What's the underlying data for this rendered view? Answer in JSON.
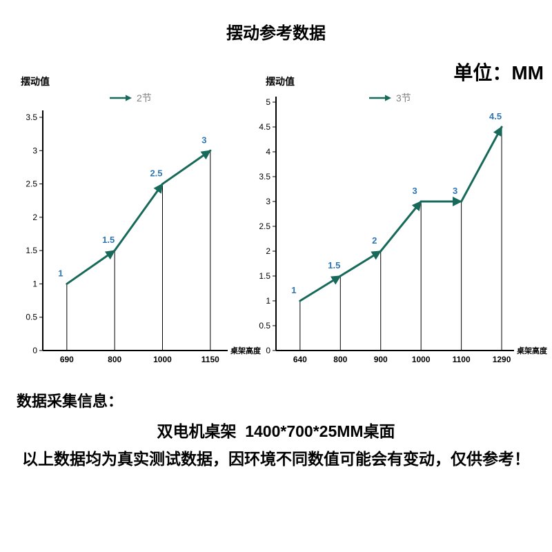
{
  "page": {
    "title": "摆动参考数据",
    "unit_label": "单位：MM"
  },
  "chart_data": [
    {
      "type": "line",
      "ylabel": "摆动值",
      "xlabel": "桌架高度",
      "legend": "2节",
      "categories": [
        "690",
        "800",
        "1000",
        "1150"
      ],
      "values": [
        1,
        1.5,
        2.5,
        3
      ],
      "yticks": [
        0,
        0.5,
        1,
        1.5,
        2,
        2.5,
        3,
        3.5
      ],
      "ylim": [
        0,
        3.5
      ],
      "grid": false,
      "legend_position": "top",
      "line_color": "#17695a",
      "value_label_color": "#2e75b6"
    },
    {
      "type": "line",
      "ylabel": "摆动值",
      "xlabel": "桌架高度",
      "legend": "3节",
      "categories": [
        "640",
        "800",
        "900",
        "1000",
        "1100",
        "1290"
      ],
      "values": [
        1,
        1.5,
        2,
        3,
        3,
        4.5
      ],
      "yticks": [
        0,
        0.5,
        1,
        1.5,
        2,
        2.5,
        3,
        3.5,
        4,
        4.5,
        5
      ],
      "ylim": [
        0,
        5
      ],
      "grid": false,
      "legend_position": "top",
      "line_color": "#17695a",
      "value_label_color": "#2e75b6"
    }
  ],
  "footer": {
    "heading": "数据采集信息：",
    "line1": "双电机桌架  1400*700*25MM桌面",
    "line2": "以上数据均为真实测试数据，因环境不同数值可能会有变动，仅供参考！"
  }
}
